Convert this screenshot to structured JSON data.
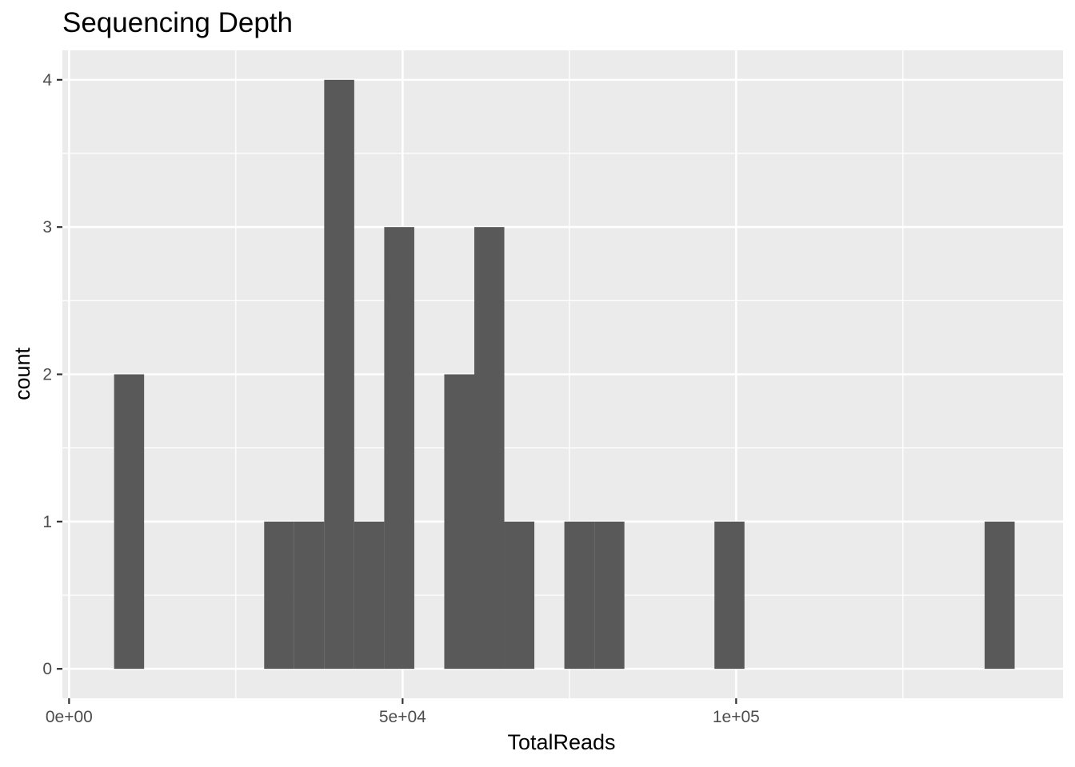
{
  "chart_data": {
    "type": "bar",
    "title": "Sequencing Depth",
    "xlabel": "TotalReads",
    "ylabel": "count",
    "bin_width": 4500,
    "xlim": [
      -1000,
      149000
    ],
    "ylim": [
      -0.2,
      4.2
    ],
    "x_ticks": [
      {
        "value": 0,
        "label": "0e+00"
      },
      {
        "value": 50000,
        "label": "5e+04"
      },
      {
        "value": 100000,
        "label": "1e+05"
      }
    ],
    "x_minor_ticks": [
      25000,
      75000,
      125000
    ],
    "y_ticks": [
      {
        "value": 0,
        "label": "0"
      },
      {
        "value": 1,
        "label": "1"
      },
      {
        "value": 2,
        "label": "2"
      },
      {
        "value": 3,
        "label": "3"
      },
      {
        "value": 4,
        "label": "4"
      }
    ],
    "y_minor_ticks": [
      0.5,
      1.5,
      2.5,
      3.5
    ],
    "bins": [
      {
        "center": 9000,
        "count": 2
      },
      {
        "center": 31500,
        "count": 1
      },
      {
        "center": 36000,
        "count": 1
      },
      {
        "center": 40500,
        "count": 4
      },
      {
        "center": 45000,
        "count": 1
      },
      {
        "center": 49500,
        "count": 3
      },
      {
        "center": 58500,
        "count": 2
      },
      {
        "center": 63000,
        "count": 3
      },
      {
        "center": 67500,
        "count": 1
      },
      {
        "center": 76500,
        "count": 1
      },
      {
        "center": 81000,
        "count": 1
      },
      {
        "center": 99000,
        "count": 1
      },
      {
        "center": 139500,
        "count": 1
      }
    ],
    "grid": true,
    "colors": {
      "panel_background": "#ebebeb",
      "grid_line": "#ffffff",
      "bar_fill": "#595959",
      "tick_mark": "#333333"
    }
  }
}
